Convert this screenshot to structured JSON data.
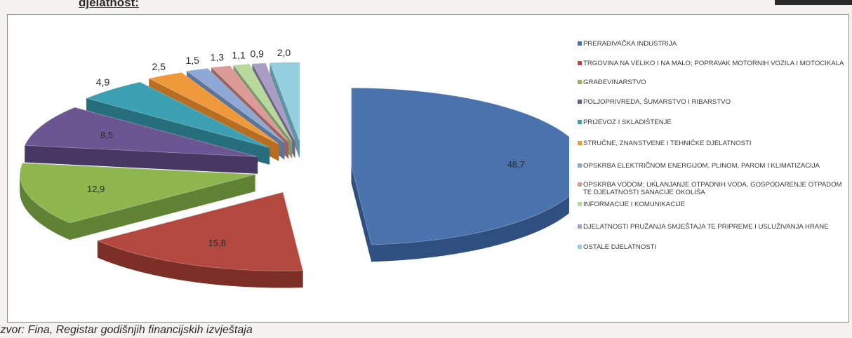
{
  "document": {
    "heading": "djelatnost:",
    "source": "Izvor: Fina, Registar godišnjih financijskih izvještaja"
  },
  "chart_data": {
    "type": "pie",
    "title": "",
    "values": [
      48.7,
      15.8,
      12.9,
      8.5,
      4.9,
      2.5,
      1.5,
      1.3,
      1.1,
      0.9,
      2.0
    ],
    "data_labels": [
      "48,7",
      "15,8",
      "12,9",
      "8,5",
      "4,9",
      "2,5",
      "1,5",
      "1,3",
      "1,1",
      "0,9",
      "2,0"
    ],
    "categories": [
      "PRERAĐIVAČKA INDUSTRIJA",
      "TRGOVINA NA VELIKO I NA MALO; POPRAVAK MOTORNIH VOZILA I MOTOCIKALA",
      "GRAĐEVINARSTVO",
      "POLJOPRIVREDA, ŠUMARSTVO I RIBARSTVO",
      "PRIJEVOZ I SKLADIŠTENJE",
      "STRUČNE, ZNANSTVENE I TEHNIČKE DJELATNOSTI",
      "OPSKRBA ELEKTRIČNOM ENERGIJOM, PLINOM, PAROM I KLIMATIZACIJA",
      "OPSKRBA VODOM; UKLANJANJE OTPADNIH VODA, GOSPODARENJE OTPADOM TE DJELATNOSTI SANACIJE OKOLIŠA",
      "INFORMACIJE I KOMUNIKACIJE",
      "DJELATNOSTI PRUŽANJA SMJEŠTAJA TE PRIPREME I USLUŽIVANJA HRANE",
      "OSTALE DJELATNOSTI"
    ],
    "colors": [
      "#4a73ad",
      "#b2483e",
      "#8db64f",
      "#6b5592",
      "#3d9fb2",
      "#ef9a3a",
      "#8ea8d6",
      "#dc9a97",
      "#b7d99c",
      "#a99cc4",
      "#94cfe0"
    ],
    "side_colors": [
      "#2f4f80",
      "#7d2e26",
      "#5f8235",
      "#473863",
      "#276e7d",
      "#b86d20",
      "#5f7598",
      "#9c6461",
      "#7f9a68",
      "#6f6586",
      "#5f94a2"
    ],
    "legend_position": "right",
    "style": "3d-exploded"
  }
}
